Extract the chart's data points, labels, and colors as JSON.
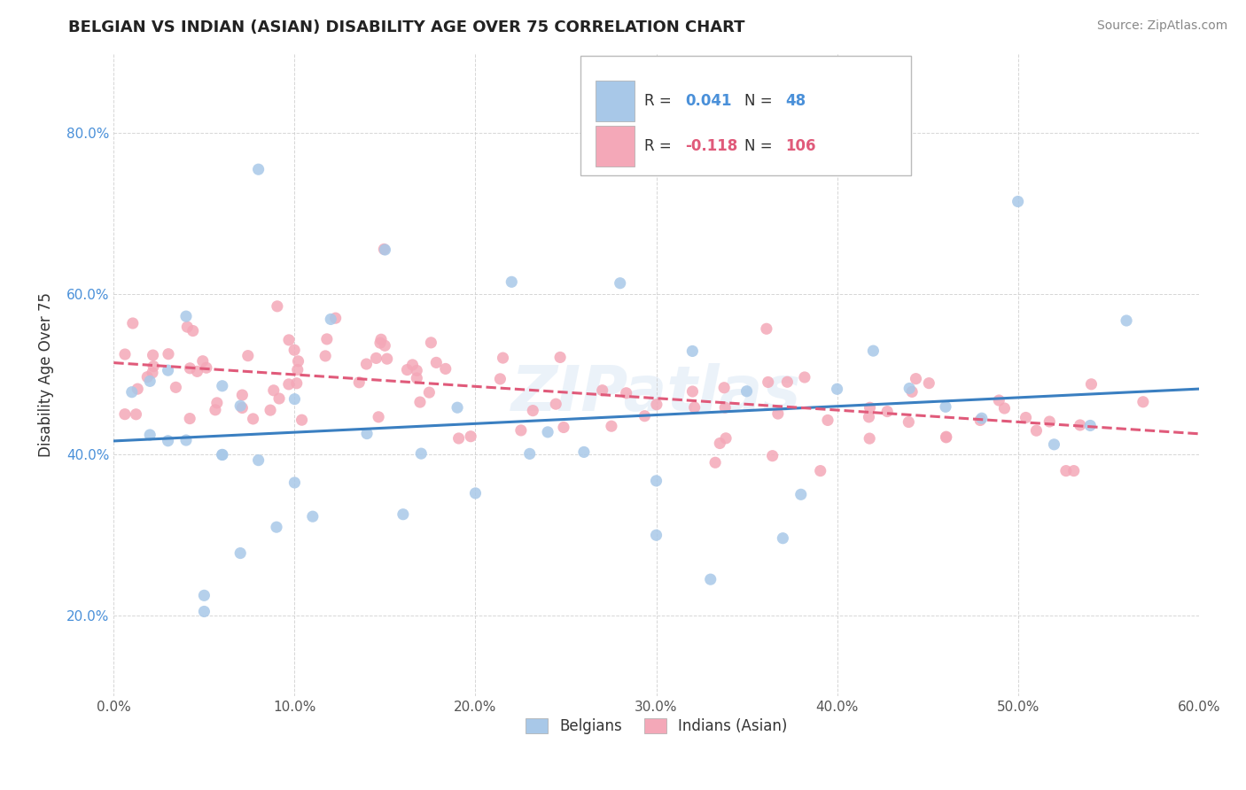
{
  "title": "BELGIAN VS INDIAN (ASIAN) DISABILITY AGE OVER 75 CORRELATION CHART",
  "source": "Source: ZipAtlas.com",
  "ylabel": "Disability Age Over 75",
  "xlim": [
    0.0,
    0.6
  ],
  "ylim": [
    0.1,
    0.9
  ],
  "x_ticks": [
    0.0,
    0.1,
    0.2,
    0.3,
    0.4,
    0.5,
    0.6
  ],
  "y_ticks": [
    0.2,
    0.4,
    0.6,
    0.8
  ],
  "belgian_color": "#a8c8e8",
  "indian_color": "#f4a8b8",
  "belgian_line_color": "#3a7fc1",
  "indian_line_color": "#e05a7a",
  "legend_R_belgian": "0.041",
  "legend_N_belgian": "48",
  "legend_R_indian": "-0.118",
  "legend_N_indian": "106",
  "belgians_label": "Belgians",
  "indians_label": "Indians (Asian)",
  "watermark": "ZIPatlas"
}
